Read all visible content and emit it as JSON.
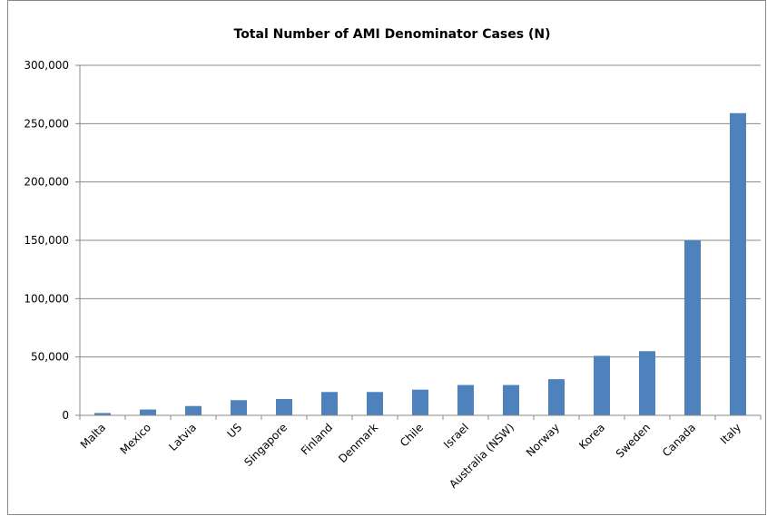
{
  "chart_data": {
    "type": "bar",
    "title": "Total Number of AMI Denominator Cases (N)",
    "categories": [
      "Malta",
      "Mexico",
      "Latvia",
      "US",
      "Singapore",
      "Finland",
      "Denmark",
      "Chile",
      "Israel",
      "Australia (NSW)",
      "Norway",
      "Korea",
      "Sweden",
      "Canada",
      "Italy"
    ],
    "values": [
      2000,
      5000,
      8000,
      13000,
      14000,
      20000,
      20000,
      22000,
      26000,
      26000,
      31000,
      51000,
      55000,
      150000,
      259000
    ],
    "color": "#4f81bd",
    "ylim": [
      0,
      300000
    ],
    "yticks": [
      0,
      {
        "value": 50000,
        "label": "50,000"
      },
      {
        "value": 100000,
        "label": "100,000"
      },
      {
        "value": 150000,
        "label": "150,000"
      },
      {
        "value": 200000,
        "label": "200,000"
      },
      {
        "value": 250000,
        "label": "250,000"
      },
      {
        "value": 300000,
        "label": "300,000"
      }
    ],
    "grid": true
  }
}
